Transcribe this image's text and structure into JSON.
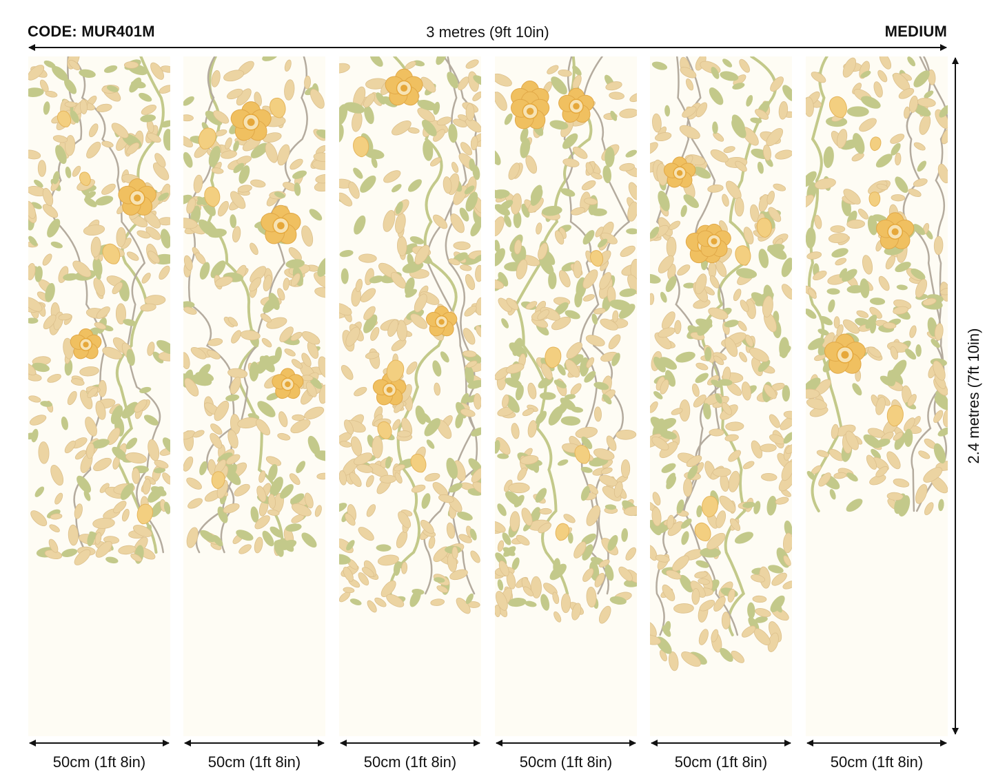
{
  "header": {
    "code": "CODE: MUR401M",
    "total_width": "3 metres (9ft 10in)",
    "size": "MEDIUM"
  },
  "height_dimension": "2.4 metres (7ft 10in)",
  "panels": [
    {
      "width_label": "50cm (1ft 8in)"
    },
    {
      "width_label": "50cm (1ft 8in)"
    },
    {
      "width_label": "50cm (1ft 8in)"
    },
    {
      "width_label": "50cm (1ft 8in)"
    },
    {
      "width_label": "50cm (1ft 8in)"
    },
    {
      "width_label": "50cm (1ft 8in)"
    }
  ],
  "colors": {
    "background": "#fefcf4",
    "leaf_tan": "#ecd4a2",
    "leaf_green": "#c3c98a",
    "stem_grey": "#b4ab9e",
    "flower_yellow": "#f0c060",
    "flower_center": "#e6a83a"
  }
}
